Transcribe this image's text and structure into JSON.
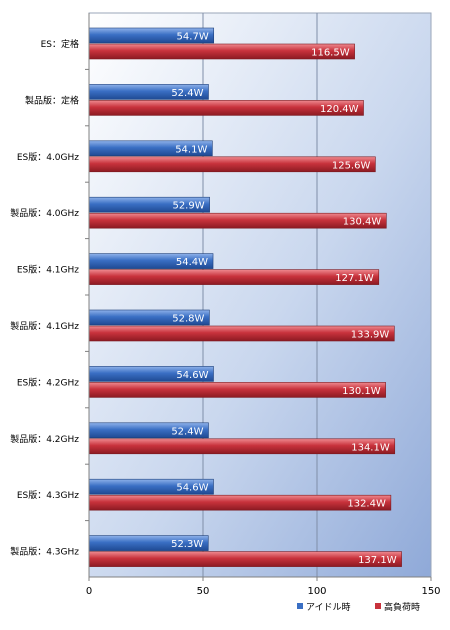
{
  "chart_data": {
    "type": "bar",
    "orientation": "horizontal",
    "categories": [
      "ES：定格",
      "製品版：定格",
      "ES版：4.0GHz",
      "製品版：4.0GHz",
      "ES版：4.1GHz",
      "製品版：4.1GHz",
      "ES版：4.2GHz",
      "製品版：4.2GHz",
      "ES版：4.3GHz",
      "製品版：4.3GHz"
    ],
    "series": [
      {
        "name": "アイドル時",
        "color": "#3a6fc4",
        "values": [
          54.7,
          52.4,
          54.1,
          52.9,
          54.4,
          52.8,
          54.6,
          52.4,
          54.6,
          52.3
        ],
        "labels": [
          "54.7W",
          "52.4W",
          "54.1W",
          "52.9W",
          "54.4W",
          "52.8W",
          "54.6W",
          "52.4W",
          "54.6W",
          "52.3W"
        ]
      },
      {
        "name": "高負荷時",
        "color": "#c8323c",
        "values": [
          116.5,
          120.4,
          125.6,
          130.4,
          127.1,
          133.9,
          130.1,
          134.1,
          132.4,
          137.1
        ],
        "labels": [
          "116.5W",
          "120.4W",
          "125.6W",
          "130.4W",
          "127.1W",
          "133.9W",
          "130.1W",
          "134.1W",
          "132.4W",
          "137.1W"
        ]
      }
    ],
    "xticks": [
      "0",
      "50",
      "100",
      "150"
    ],
    "xlim": [
      0,
      150
    ],
    "grid": true,
    "legend": "bottom-right",
    "title": "",
    "xlabel": "",
    "ylabel": ""
  }
}
